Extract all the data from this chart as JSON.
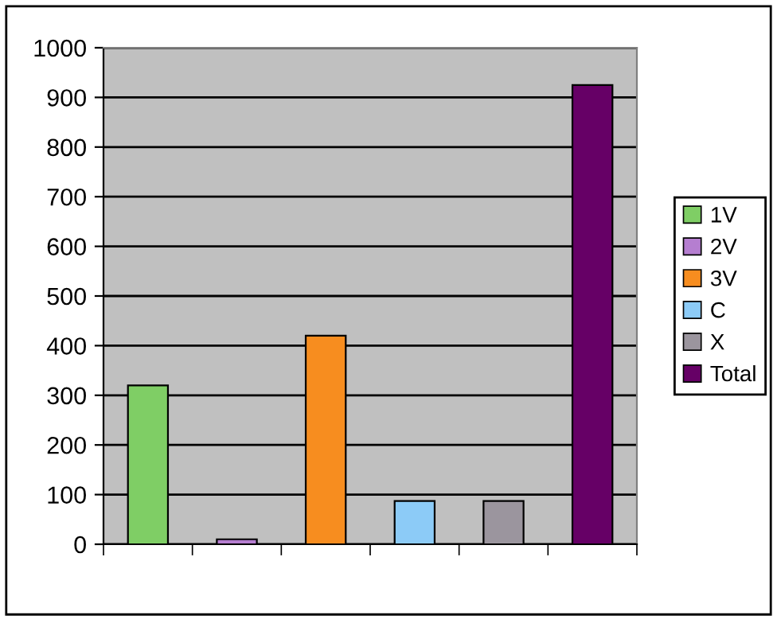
{
  "chart_data": {
    "type": "bar",
    "categories": [
      null,
      null,
      null,
      null,
      null,
      null
    ],
    "series": [
      {
        "name": "1V",
        "color": "#7fce65",
        "values": [
          320,
          null,
          null,
          null,
          null,
          null
        ]
      },
      {
        "name": "2V",
        "color": "#b57ed0",
        "values": [
          null,
          10,
          null,
          null,
          null,
          null
        ]
      },
      {
        "name": "3V",
        "color": "#f78d1f",
        "values": [
          null,
          null,
          420,
          null,
          null,
          null
        ]
      },
      {
        "name": "C",
        "color": "#8ccbf7",
        "values": [
          null,
          null,
          null,
          87,
          null,
          null
        ]
      },
      {
        "name": "X",
        "color": "#9b959e",
        "values": [
          null,
          null,
          null,
          null,
          87,
          null
        ]
      },
      {
        "name": "Total",
        "color": "#660066",
        "values": [
          null,
          null,
          null,
          null,
          null,
          925
        ]
      }
    ],
    "ylim": [
      0,
      1000
    ],
    "yticks": [
      0,
      100,
      200,
      300,
      400,
      500,
      600,
      700,
      800,
      900,
      1000
    ],
    "grid": "y",
    "legend": "right"
  }
}
